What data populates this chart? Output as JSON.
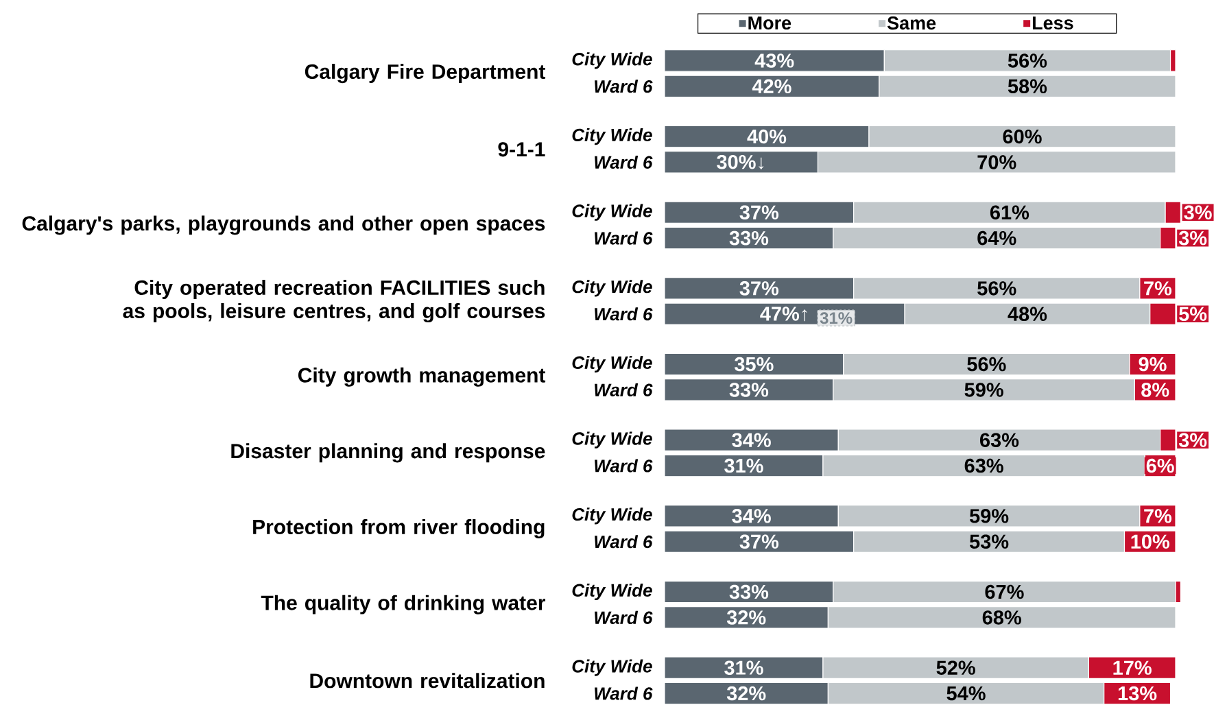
{
  "chart_data": {
    "type": "bar",
    "orientation": "horizontal",
    "stacked": true,
    "legend": "top",
    "categories": [
      "City Wide",
      "Ward 6",
      "City Wide",
      "Ward 6",
      "City Wide",
      "Ward 6",
      "City Wide",
      "Ward 6",
      "City Wide",
      "Ward 6",
      "City Wide",
      "Ward 6",
      "City Wide",
      "Ward 6",
      "City Wide",
      "Ward 6",
      "City Wide",
      "Ward 6"
    ],
    "series": [
      {
        "name": "More",
        "color": "#5a6670",
        "values": [
          43,
          42,
          40,
          30,
          37,
          33,
          37,
          47,
          35,
          33,
          34,
          31,
          34,
          37,
          33,
          32,
          31,
          32
        ],
        "value_labels": [
          "43%",
          "42%",
          "40%",
          "30%↓",
          "37%",
          "33%",
          "37%",
          "47%↑",
          "35%",
          "33%",
          "34%",
          "31%",
          "34%",
          "37%",
          "33%",
          "32%",
          "31%",
          "32%"
        ]
      },
      {
        "name": "Same",
        "color": "#c1c7ca",
        "values": [
          56,
          58,
          60,
          70,
          61,
          64,
          56,
          48,
          56,
          59,
          63,
          63,
          59,
          53,
          67,
          68,
          52,
          54
        ],
        "value_labels": [
          "56%",
          "58%",
          "60%",
          "70%",
          "61%",
          "64%",
          "56%",
          "48%",
          "56%",
          "59%",
          "63%",
          "63%",
          "59%",
          "53%",
          "67%",
          "68%",
          "52%",
          "54%"
        ]
      },
      {
        "name": "Less",
        "color": "#c8102e",
        "values": [
          1,
          null,
          null,
          null,
          3,
          3,
          7,
          5,
          9,
          8,
          3,
          6,
          7,
          10,
          1,
          null,
          17,
          13
        ],
        "value_labels": [
          null,
          null,
          null,
          null,
          "3%",
          "3%",
          "7%",
          "5%",
          "9%",
          "8%",
          "3%",
          "6%",
          "7%",
          "10%",
          null,
          null,
          "17%",
          "13%"
        ]
      }
    ],
    "annotations": [
      "Calgary Fire Department",
      "9-1-1",
      "Calgary's parks, playgrounds and other open spaces",
      "City operated recreation FACILITIES such as pools, leisure centres, and golf courses",
      "City growth management",
      "Disaster planning and response",
      "Protection from river flooding",
      "The quality of drinking water",
      "Downtown revitalization",
      "31%"
    ]
  }
}
